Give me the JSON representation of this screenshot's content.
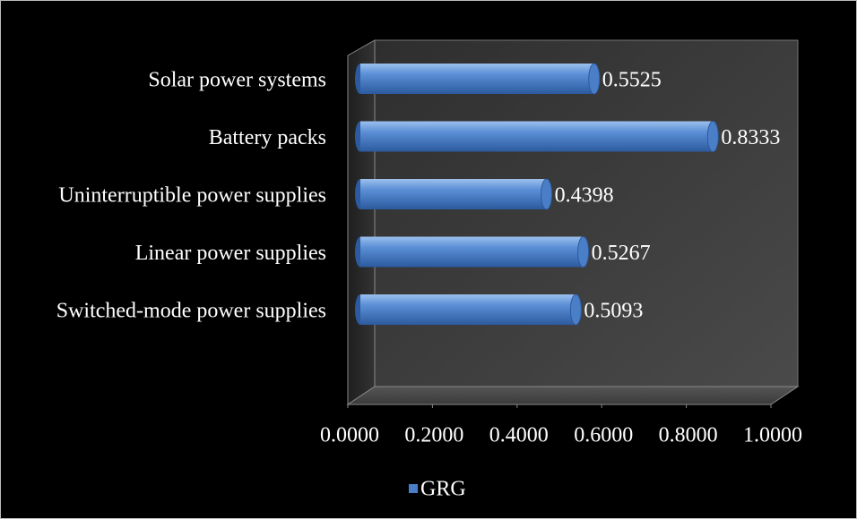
{
  "chart_data": {
    "type": "bar",
    "orientation": "horizontal",
    "categories": [
      "Solar power systems",
      "Battery packs",
      "Uninterruptible power supplies",
      "Linear power supplies",
      "Switched-mode power supplies"
    ],
    "series": [
      {
        "name": "GRG",
        "color": "#4a7fc8",
        "values": [
          0.5525,
          0.8333,
          0.4398,
          0.5267,
          0.5093
        ]
      }
    ],
    "xlim": [
      0,
      1
    ],
    "xticks": [
      {
        "value": 0,
        "label": "0.0000"
      },
      {
        "value": 0.2,
        "label": "0.2000"
      },
      {
        "value": 0.4,
        "label": "0.4000"
      },
      {
        "value": 0.6,
        "label": "0.6000"
      },
      {
        "value": 0.8,
        "label": "0.8000"
      },
      {
        "value": 1,
        "label": "1.0000"
      }
    ],
    "legend": "bottom"
  }
}
